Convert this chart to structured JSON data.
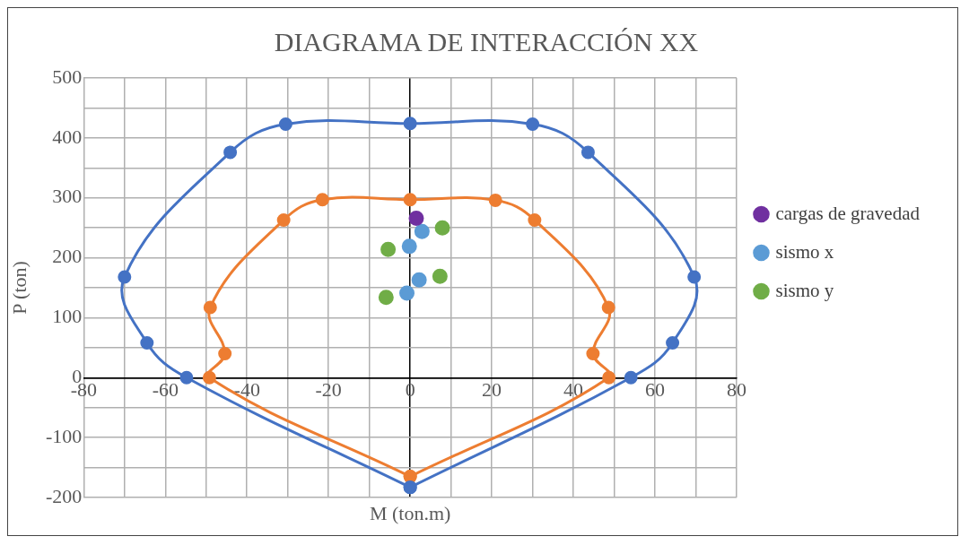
{
  "chart_data": {
    "type": "scatter",
    "title": "DIAGRAMA DE INTERACCIÓN XX",
    "xlabel": "M (ton.m)",
    "ylabel": "P (ton)",
    "xlim": [
      -80,
      80
    ],
    "ylim": [
      -200,
      500
    ],
    "xticks": [
      -80,
      {
        "value": -70,
        "label": null
      },
      -60,
      {
        "value": -50,
        "label": null
      },
      -40,
      {
        "value": -30,
        "label": null
      },
      -20,
      {
        "value": -10,
        "label": null
      },
      0,
      {
        "value": 10,
        "label": null
      },
      20,
      {
        "value": 30,
        "label": null
      },
      40,
      {
        "value": 50,
        "label": null
      },
      60,
      {
        "value": 70,
        "label": null
      },
      80
    ],
    "yticks": [
      -200,
      {
        "value": -150,
        "label": null
      },
      -100,
      {
        "value": -50,
        "label": null
      },
      0,
      {
        "value": 50,
        "label": null
      },
      100,
      {
        "value": 150,
        "label": null
      },
      200,
      {
        "value": 250,
        "label": null
      },
      300,
      {
        "value": 350,
        "label": null
      },
      400,
      {
        "value": 450,
        "label": null
      },
      500
    ],
    "grid": true,
    "legend": "right",
    "marker": "circle",
    "series": [
      {
        "type": "scatter",
        "line_style": "solid",
        "color": "#4472c4",
        "x": [
          0,
          -54.8,
          -64.5,
          -70,
          -44.1,
          -30.5,
          0,
          30,
          43.6,
          69.6,
          64.3,
          54.1,
          0
        ],
        "values": [
          -183,
          0,
          58,
          168,
          376,
          423,
          424,
          423,
          376,
          168,
          58,
          0,
          -183
        ]
      },
      {
        "type": "scatter",
        "line_style": "solid",
        "color": "#ed7d31",
        "x": [
          0,
          -49.2,
          -45.4,
          -49,
          -31,
          -21.5,
          0,
          20.9,
          30.5,
          48.6,
          44.8,
          48.7,
          0
        ],
        "values": [
          -165,
          0,
          40,
          117,
          263,
          297,
          297,
          296,
          263,
          117,
          40,
          0,
          -165
        ]
      },
      {
        "type": "scatter",
        "name": "cargas de gravedad",
        "color": "#7030a0",
        "x": [
          1.5
        ],
        "values": [
          266
        ]
      },
      {
        "type": "scatter",
        "name": "sismo x",
        "color": "#5b9bd5",
        "x": [
          2.9,
          -0.2,
          2.2,
          -0.8
        ],
        "values": [
          244,
          219,
          163,
          141
        ]
      },
      {
        "type": "scatter",
        "name": "sismo y",
        "color": "#70ad47",
        "x": [
          7.9,
          -5.4,
          7.3,
          -5.9
        ],
        "values": [
          250,
          214,
          169,
          134
        ]
      }
    ]
  }
}
